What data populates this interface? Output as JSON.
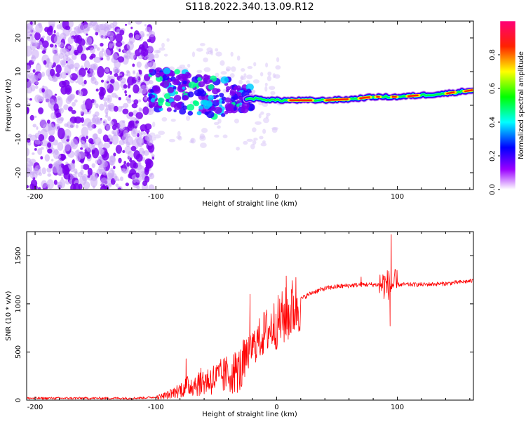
{
  "title": "S118.2022.340.13.09.R12",
  "chart_data": [
    {
      "type": "heatmap",
      "xlabel": "Height of straight line (km)",
      "ylabel": "Frequency (Hz)",
      "xlim": [
        -207,
        163
      ],
      "ylim": [
        -25,
        25
      ],
      "xticks": [
        -200,
        -100,
        0,
        100
      ],
      "yticks": [
        20,
        10,
        0,
        -10,
        -20
      ],
      "colorbar": {
        "label": "Normalized spectral amplitude",
        "range": [
          0,
          1
        ],
        "ticks": [
          0.0,
          0.2,
          0.4,
          0.6,
          0.8
        ],
        "colors": [
          "#ffffff",
          "#7700ff",
          "#0000ff",
          "#00ffff",
          "#00ff00",
          "#ffff00",
          "#ff0000",
          "#ff0088"
        ]
      },
      "ridge_frequency": {
        "x": [
          -100,
          -80,
          -60,
          -40,
          -20,
          0,
          20,
          40,
          60,
          80,
          100,
          120,
          140,
          163
        ],
        "y": [
          5,
          4,
          3,
          2,
          2,
          1.5,
          1.5,
          1.5,
          1.8,
          2.5,
          2.5,
          3,
          3.5,
          4.5
        ]
      },
      "noise_region_x": [
        -207,
        -105
      ]
    },
    {
      "type": "line",
      "xlabel": "Height of straight line (km)",
      "ylabel": "SNR (10 * v/v)",
      "xlim": [
        -207,
        163
      ],
      "ylim": [
        0,
        1750
      ],
      "xticks": [
        -200,
        -100,
        0,
        100
      ],
      "yticks": [
        0,
        500,
        1000,
        1500
      ],
      "color": "#ff0000",
      "envelope": {
        "x": [
          -207,
          -120,
          -100,
          -90,
          -80,
          -70,
          -60,
          -50,
          -40,
          -30,
          -20,
          -10,
          0,
          10,
          20,
          30,
          40,
          50,
          60,
          70,
          80,
          90,
          95,
          100,
          110,
          120,
          140,
          163
        ],
        "y": [
          20,
          20,
          30,
          60,
          120,
          180,
          220,
          250,
          300,
          350,
          550,
          700,
          800,
          900,
          1050,
          1120,
          1160,
          1180,
          1190,
          1200,
          1200,
          1200,
          1200,
          1200,
          1200,
          1200,
          1210,
          1240
        ]
      },
      "spikes": [
        {
          "x": 95,
          "y": 1720
        },
        {
          "x": 8,
          "y": 1290
        },
        {
          "x": -22,
          "y": 1100
        },
        {
          "x": 94,
          "y": 770
        },
        {
          "x": -75,
          "y": 430
        },
        {
          "x": 70,
          "y": 1280
        }
      ]
    }
  ]
}
